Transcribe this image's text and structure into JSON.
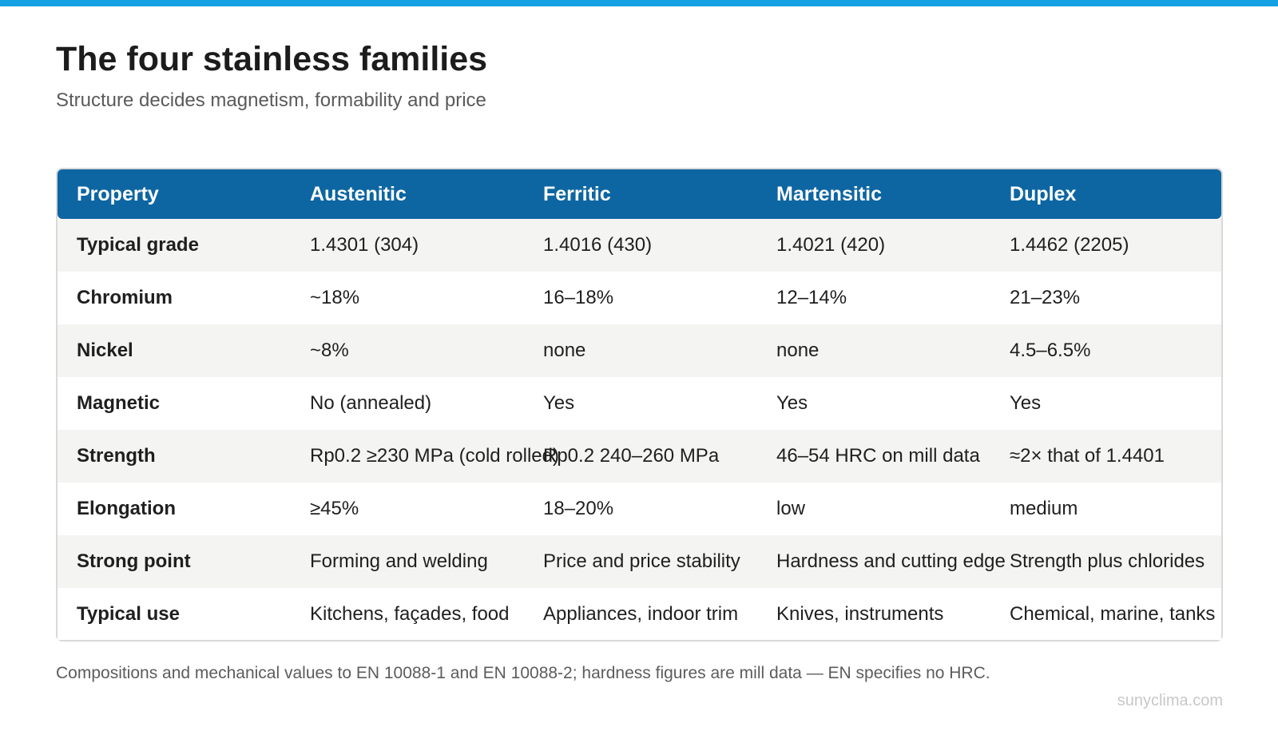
{
  "title": "The four stainless families",
  "subtitle": "Structure decides magnetism, formability and price",
  "table": {
    "headers": [
      "Property",
      "Austenitic",
      "Ferritic",
      "Martensitic",
      "Duplex"
    ],
    "rows": [
      [
        "Typical grade",
        "1.4301 (304)",
        "1.4016 (430)",
        "1.4021 (420)",
        "1.4462 (2205)"
      ],
      [
        "Chromium",
        "~18%",
        "16–18%",
        "12–14%",
        "21–23%"
      ],
      [
        "Nickel",
        "~8%",
        "none",
        "none",
        "4.5–6.5%"
      ],
      [
        "Magnetic",
        "No (annealed)",
        "Yes",
        "Yes",
        "Yes"
      ],
      [
        "Strength",
        "Rp0.2 ≥230 MPa (cold rolled)",
        "Rp0.2 240–260 MPa",
        "46–54 HRC on mill data",
        "≈2× that of 1.4401"
      ],
      [
        "Elongation",
        "≥45%",
        "18–20%",
        "low",
        "medium"
      ],
      [
        "Strong point",
        "Forming and welding",
        "Price and price stability",
        "Hardness and cutting edge",
        "Strength plus chlorides"
      ],
      [
        "Typical use",
        "Kitchens, façades, food",
        "Appliances, indoor trim",
        "Knives, instruments",
        "Chemical, marine, tanks"
      ]
    ]
  },
  "footnote": "Compositions and mechanical values to EN 10088-1 and EN 10088-2; hardness figures are mill data — EN specifies no HRC.",
  "credit": "sunyclima.com",
  "colors": {
    "accent_bar": "#14a0e3",
    "header_bg": "#0d66a2",
    "row_shaded": "#f4f4f3"
  }
}
